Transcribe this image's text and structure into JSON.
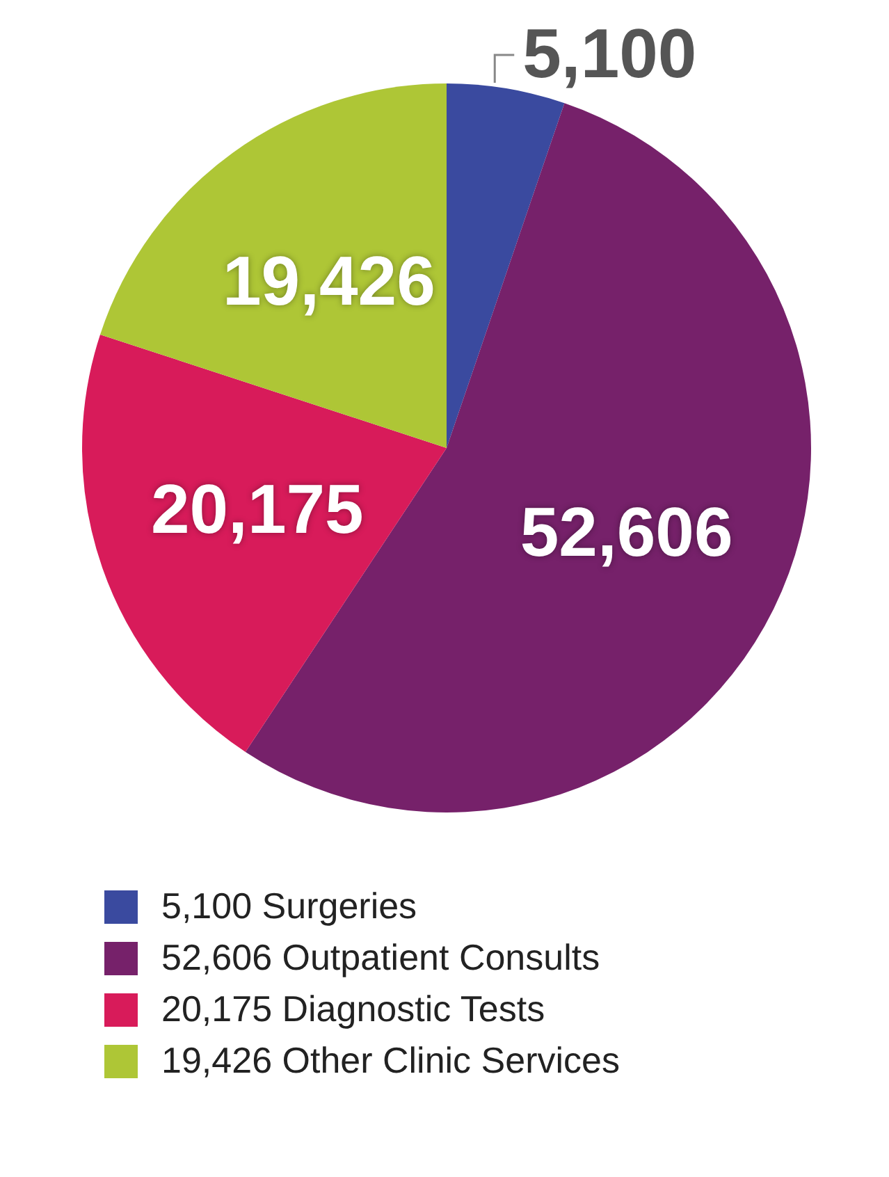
{
  "chart_data": {
    "type": "pie",
    "categories": [
      "Surgeries",
      "Outpatient Consults",
      "Diagnostic Tests",
      "Other Clinic Services"
    ],
    "values": [
      5100,
      52606,
      20175,
      19426
    ],
    "colors": [
      "#3a4a9f",
      "#76216a",
      "#d81b5a",
      "#aec636"
    ],
    "value_labels": [
      "5,100",
      "52,606",
      "20,175",
      "19,426"
    ],
    "data_labels": true,
    "legend": "bottom"
  }
}
